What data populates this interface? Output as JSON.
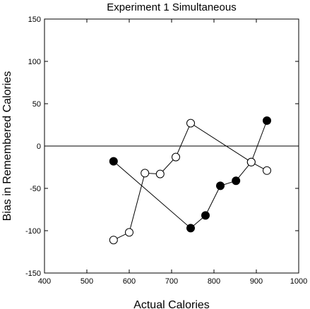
{
  "chart_data": {
    "type": "scatter",
    "title": "Experiment 1 Simultaneous",
    "xlabel": "Actual Calories",
    "ylabel": "Bias in Remembered Calories",
    "xlim": [
      400,
      1000
    ],
    "ylim": [
      -150,
      150
    ],
    "xticks": [
      "400",
      "500",
      "600",
      "700",
      "800",
      "900",
      "1000"
    ],
    "yticks": [
      "150",
      "100",
      "50",
      "0",
      "-50",
      "-100",
      "-150"
    ],
    "reference_line_y": 0,
    "grid": false,
    "series": [
      {
        "marker": "filled-circle",
        "color": "#000000",
        "points": [
          {
            "x": 563,
            "y": -18
          },
          {
            "x": 745,
            "y": -97
          },
          {
            "x": 780,
            "y": -82
          },
          {
            "x": 815,
            "y": -47
          },
          {
            "x": 852,
            "y": -41
          },
          {
            "x": 888,
            "y": -19
          },
          {
            "x": 925,
            "y": 30
          }
        ]
      },
      {
        "marker": "open-circle",
        "color": "#000000",
        "points": [
          {
            "x": 563,
            "y": -111
          },
          {
            "x": 600,
            "y": -102
          },
          {
            "x": 637,
            "y": -32
          },
          {
            "x": 673,
            "y": -33
          },
          {
            "x": 710,
            "y": -13
          },
          {
            "x": 745,
            "y": 27
          },
          {
            "x": 888,
            "y": -19
          },
          {
            "x": 925,
            "y": -29
          }
        ]
      }
    ]
  }
}
